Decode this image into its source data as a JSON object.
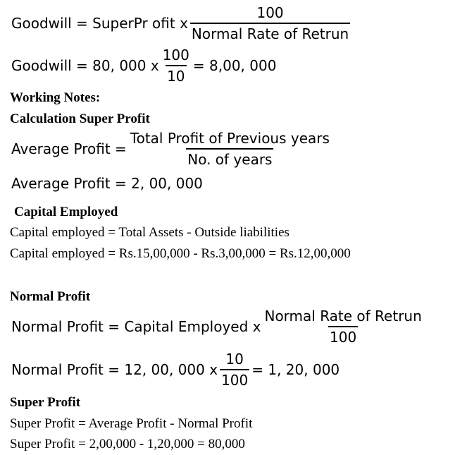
{
  "goodwill_formula": {
    "lhs": "Goodwill = SuperPr ofit x",
    "numerator": "100",
    "denominator": "Normal Rate of Retrun"
  },
  "goodwill_calc": {
    "lhs": "Goodwill = 80, 000 x",
    "numerator": "100",
    "denominator": "10",
    "rhs": "= 8,00, 000"
  },
  "working_notes_heading": "Working Notes:",
  "super_profit_calc_heading": "Calculation Super Profit",
  "average_profit_formula": {
    "lhs": "Average Profit =",
    "numerator": "Total Profit of Previous years",
    "denominator": "No. of years"
  },
  "average_profit_value": "Average Profit = 2, 00, 000",
  "capital_employed_heading": "Capital Employed",
  "capital_employed_formula": "Capital employed = Total Assets - Outside liabilities",
  "capital_employed_calc": "Capital employed = Rs.15,00,000 - Rs.3,00,000 = Rs.12,00,000",
  "normal_profit_heading": "Normal Profit",
  "normal_profit_formula": {
    "lhs": "Normal Profit = Capital Employed x",
    "numerator": "Normal Rate of Retrun",
    "denominator": "100"
  },
  "normal_profit_calc": {
    "lhs": "Normal Profit = 12, 00, 000 x",
    "numerator": "10",
    "denominator": "100",
    "rhs": "= 1, 20, 000"
  },
  "super_profit_heading": "Super Profit",
  "super_profit_formula": "Super Profit = Average Profit - Normal Profit",
  "super_profit_calc": "Super Profit = 2,00,000 - 1,20,000 = 80,000"
}
